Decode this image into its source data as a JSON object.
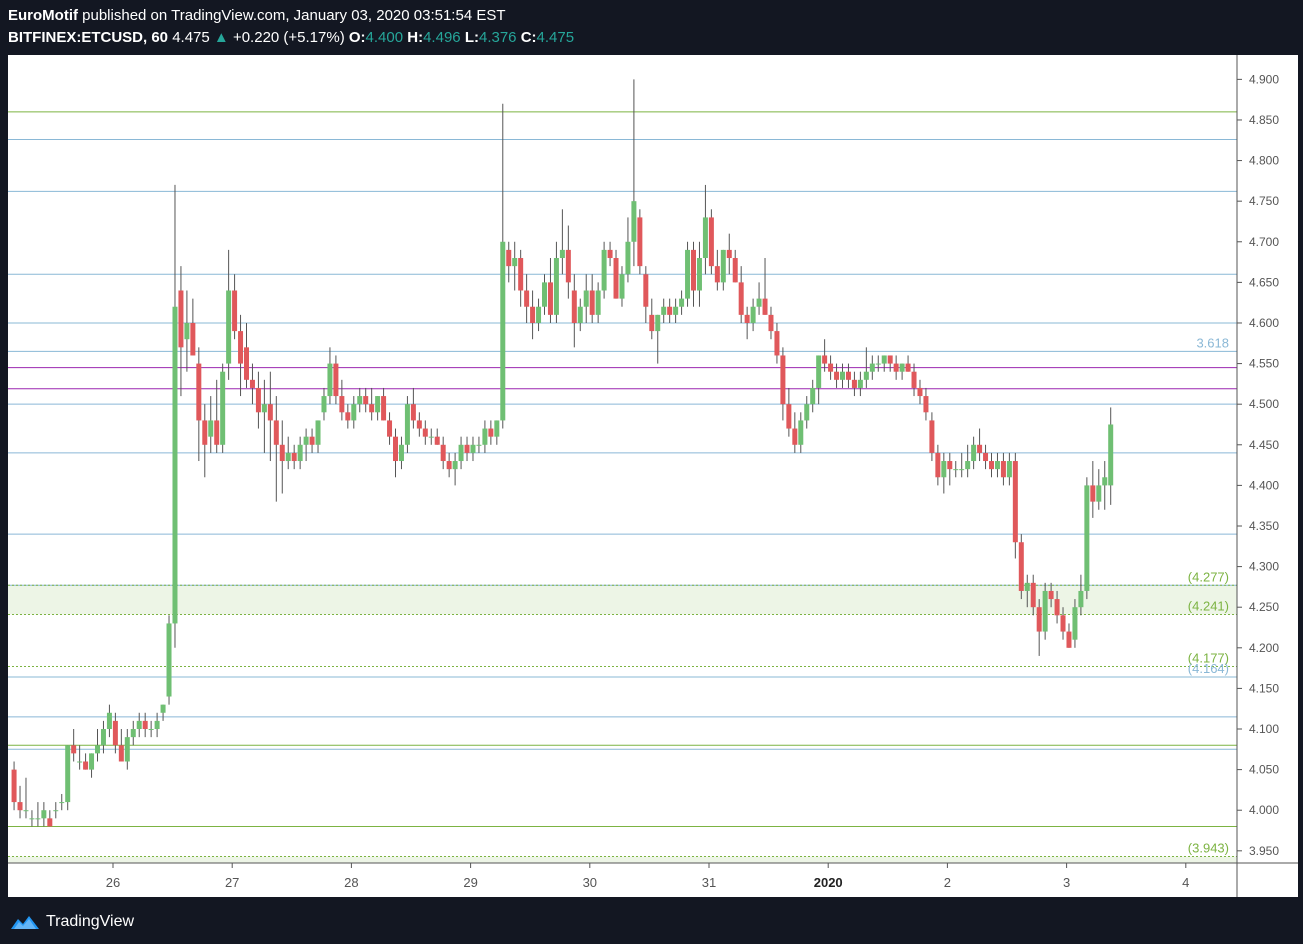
{
  "header": {
    "author": "EuroMotif",
    "published_text": "published on TradingView.com, January 03, 2020 03:51:54 EST",
    "symbol": "BITFINEX:ETCUSD, 60",
    "last": "4.475",
    "change_arrow": "▲",
    "change": "+0.220 (+5.17%)",
    "o_label": "O:",
    "o_value": "4.400",
    "h_label": "H:",
    "h_value": "4.496",
    "l_label": "L:",
    "l_value": "4.376",
    "c_label": "C:",
    "c_value": "4.475"
  },
  "footer": {
    "brand": "TradingView"
  },
  "colors": {
    "up": "#26a69a",
    "candle_up": "#6fbf73",
    "candle_down": "#e0585b",
    "fib_blue": "#8ab8d6",
    "fib_green": "#7cb342",
    "purple": "#9c27b0",
    "axis_text": "#555555"
  },
  "chart_data": {
    "type": "candlestick",
    "ylim": [
      3.935,
      4.93
    ],
    "y_ticks": [
      "4.900",
      "4.850",
      "4.800",
      "4.750",
      "4.700",
      "4.650",
      "4.600",
      "4.550",
      "4.500",
      "4.450",
      "4.400",
      "4.350",
      "4.300",
      "4.250",
      "4.200",
      "4.150",
      "4.100",
      "4.050",
      "4.000",
      "3.950"
    ],
    "x_ticks": [
      {
        "label": "26",
        "day": 26
      },
      {
        "label": "27",
        "day": 27
      },
      {
        "label": "28",
        "day": 28
      },
      {
        "label": "29",
        "day": 29
      },
      {
        "label": "30",
        "day": 30
      },
      {
        "label": "31",
        "day": 31
      },
      {
        "label": "2020",
        "day": 32,
        "bold": true
      },
      {
        "label": "2",
        "day": 33
      },
      {
        "label": "3",
        "day": 34
      },
      {
        "label": "4",
        "day": 35
      }
    ],
    "horizontal_levels": [
      {
        "price": 4.86,
        "color": "green"
      },
      {
        "price": 4.826,
        "color": "blue"
      },
      {
        "price": 4.762,
        "color": "blue"
      },
      {
        "price": 4.66,
        "color": "blue"
      },
      {
        "price": 4.6,
        "color": "blue"
      },
      {
        "price": 4.565,
        "color": "blue",
        "label": "3.618"
      },
      {
        "price": 4.545,
        "color": "purple"
      },
      {
        "price": 4.519,
        "color": "purple"
      },
      {
        "price": 4.5,
        "color": "blue"
      },
      {
        "price": 4.44,
        "color": "blue"
      },
      {
        "price": 4.34,
        "color": "blue"
      },
      {
        "price": 4.277,
        "color": "blue"
      },
      {
        "price": 4.277,
        "color": "green",
        "label": "(4.277)"
      },
      {
        "price": 4.241,
        "color": "green",
        "label": "(4.241)"
      },
      {
        "price": 4.177,
        "color": "green",
        "label": "(4.177)"
      },
      {
        "price": 4.164,
        "color": "blue",
        "label": "(4.164)"
      },
      {
        "price": 4.115,
        "color": "blue"
      },
      {
        "price": 4.08,
        "color": "green"
      },
      {
        "price": 4.075,
        "color": "blue"
      },
      {
        "price": 3.98,
        "color": "green"
      },
      {
        "price": 3.943,
        "color": "green",
        "label": "(3.943)"
      }
    ],
    "zones": [
      {
        "from": 4.241,
        "to": 4.277
      },
      {
        "from": 3.935,
        "to": 3.943
      }
    ],
    "candles": [
      [
        25.17,
        4.05,
        4.06,
        4.0,
        4.01
      ],
      [
        25.22,
        4.01,
        4.03,
        3.99,
        4.0
      ],
      [
        25.27,
        4.0,
        4.04,
        3.99,
        4.0
      ],
      [
        25.32,
        3.99,
        4.0,
        3.98,
        3.99
      ],
      [
        25.37,
        3.99,
        4.01,
        3.98,
        3.99
      ],
      [
        25.42,
        3.99,
        4.01,
        3.98,
        4.0
      ],
      [
        25.47,
        3.99,
        4.0,
        3.98,
        3.98
      ],
      [
        25.52,
        4.0,
        4.01,
        3.99,
        4.0
      ],
      [
        25.57,
        4.01,
        4.02,
        4.0,
        4.01
      ],
      [
        25.62,
        4.01,
        4.08,
        4.0,
        4.08
      ],
      [
        25.67,
        4.08,
        4.1,
        4.06,
        4.07
      ],
      [
        25.72,
        4.06,
        4.08,
        4.05,
        4.06
      ],
      [
        25.77,
        4.06,
        4.07,
        4.05,
        4.05
      ],
      [
        25.82,
        4.05,
        4.07,
        4.04,
        4.07
      ],
      [
        25.87,
        4.07,
        4.1,
        4.06,
        4.08
      ],
      [
        25.92,
        4.08,
        4.11,
        4.07,
        4.1
      ],
      [
        25.97,
        4.1,
        4.13,
        4.09,
        4.12
      ],
      [
        26.02,
        4.11,
        4.12,
        4.07,
        4.08
      ],
      [
        26.07,
        4.08,
        4.1,
        4.06,
        4.06
      ],
      [
        26.12,
        4.06,
        4.1,
        4.05,
        4.09
      ],
      [
        26.17,
        4.09,
        4.11,
        4.08,
        4.1
      ],
      [
        26.22,
        4.1,
        4.12,
        4.09,
        4.11
      ],
      [
        26.27,
        4.11,
        4.12,
        4.09,
        4.1
      ],
      [
        26.32,
        4.1,
        4.11,
        4.09,
        4.1
      ],
      [
        26.37,
        4.1,
        4.12,
        4.09,
        4.11
      ],
      [
        26.42,
        4.12,
        4.13,
        4.11,
        4.13
      ],
      [
        26.47,
        4.14,
        4.24,
        4.13,
        4.23
      ],
      [
        26.52,
        4.23,
        4.77,
        4.2,
        4.62
      ],
      [
        26.57,
        4.64,
        4.67,
        4.51,
        4.57
      ],
      [
        26.62,
        4.58,
        4.64,
        4.54,
        4.6
      ],
      [
        26.67,
        4.6,
        4.63,
        4.56,
        4.56
      ],
      [
        26.72,
        4.55,
        4.57,
        4.43,
        4.48
      ],
      [
        26.77,
        4.48,
        4.5,
        4.41,
        4.45
      ],
      [
        26.82,
        4.46,
        4.51,
        4.44,
        4.48
      ],
      [
        26.87,
        4.48,
        4.53,
        4.44,
        4.45
      ],
      [
        26.92,
        4.45,
        4.55,
        4.44,
        4.54
      ],
      [
        26.97,
        4.55,
        4.69,
        4.53,
        4.64
      ],
      [
        27.02,
        4.64,
        4.66,
        4.58,
        4.59
      ],
      [
        27.07,
        4.59,
        4.61,
        4.51,
        4.55
      ],
      [
        27.12,
        4.57,
        4.6,
        4.52,
        4.53
      ],
      [
        27.17,
        4.53,
        4.55,
        4.5,
        4.52
      ],
      [
        27.22,
        4.52,
        4.54,
        4.47,
        4.49
      ],
      [
        27.27,
        4.49,
        4.53,
        4.44,
        4.5
      ],
      [
        27.32,
        4.5,
        4.54,
        4.43,
        4.48
      ],
      [
        27.37,
        4.48,
        4.51,
        4.38,
        4.45
      ],
      [
        27.42,
        4.45,
        4.48,
        4.39,
        4.43
      ],
      [
        27.47,
        4.43,
        4.46,
        4.42,
        4.44
      ],
      [
        27.52,
        4.44,
        4.45,
        4.42,
        4.43
      ],
      [
        27.57,
        4.43,
        4.46,
        4.42,
        4.45
      ],
      [
        27.62,
        4.45,
        4.47,
        4.43,
        4.46
      ],
      [
        27.67,
        4.46,
        4.47,
        4.44,
        4.45
      ],
      [
        27.72,
        4.45,
        4.48,
        4.44,
        4.48
      ],
      [
        27.77,
        4.49,
        4.52,
        4.48,
        4.51
      ],
      [
        27.82,
        4.51,
        4.57,
        4.5,
        4.55
      ],
      [
        27.87,
        4.55,
        4.56,
        4.5,
        4.51
      ],
      [
        27.92,
        4.51,
        4.53,
        4.48,
        4.49
      ],
      [
        27.97,
        4.49,
        4.5,
        4.47,
        4.48
      ],
      [
        28.02,
        4.48,
        4.51,
        4.47,
        4.5
      ],
      [
        28.07,
        4.5,
        4.52,
        4.49,
        4.51
      ],
      [
        28.12,
        4.51,
        4.52,
        4.49,
        4.5
      ],
      [
        28.17,
        4.5,
        4.52,
        4.48,
        4.49
      ],
      [
        28.22,
        4.49,
        4.51,
        4.48,
        4.51
      ],
      [
        28.27,
        4.51,
        4.52,
        4.48,
        4.48
      ],
      [
        28.32,
        4.48,
        4.49,
        4.45,
        4.46
      ],
      [
        28.37,
        4.46,
        4.47,
        4.41,
        4.43
      ],
      [
        28.42,
        4.43,
        4.46,
        4.42,
        4.45
      ],
      [
        28.47,
        4.45,
        4.51,
        4.44,
        4.5
      ],
      [
        28.52,
        4.5,
        4.52,
        4.47,
        4.48
      ],
      [
        28.57,
        4.48,
        4.49,
        4.46,
        4.47
      ],
      [
        28.62,
        4.47,
        4.48,
        4.45,
        4.46
      ],
      [
        28.67,
        4.46,
        4.47,
        4.45,
        4.46
      ],
      [
        28.72,
        4.46,
        4.47,
        4.45,
        4.45
      ],
      [
        28.77,
        4.45,
        4.46,
        4.42,
        4.43
      ],
      [
        28.82,
        4.43,
        4.44,
        4.41,
        4.42
      ],
      [
        28.87,
        4.42,
        4.44,
        4.4,
        4.43
      ],
      [
        28.92,
        4.43,
        4.46,
        4.42,
        4.45
      ],
      [
        28.97,
        4.45,
        4.46,
        4.43,
        4.44
      ],
      [
        29.02,
        4.44,
        4.46,
        4.43,
        4.45
      ],
      [
        29.07,
        4.45,
        4.46,
        4.44,
        4.45
      ],
      [
        29.12,
        4.45,
        4.48,
        4.44,
        4.47
      ],
      [
        29.17,
        4.47,
        4.48,
        4.45,
        4.46
      ],
      [
        29.22,
        4.46,
        4.48,
        4.45,
        4.48
      ],
      [
        29.27,
        4.48,
        4.87,
        4.47,
        4.7
      ],
      [
        29.32,
        4.69,
        4.7,
        4.65,
        4.67
      ],
      [
        29.37,
        4.67,
        4.7,
        4.64,
        4.68
      ],
      [
        29.42,
        4.68,
        4.69,
        4.62,
        4.64
      ],
      [
        29.47,
        4.64,
        4.66,
        4.6,
        4.62
      ],
      [
        29.52,
        4.62,
        4.64,
        4.58,
        4.6
      ],
      [
        29.57,
        4.6,
        4.63,
        4.59,
        4.62
      ],
      [
        29.62,
        4.62,
        4.66,
        4.61,
        4.65
      ],
      [
        29.67,
        4.65,
        4.68,
        4.6,
        4.61
      ],
      [
        29.72,
        4.61,
        4.7,
        4.6,
        4.68
      ],
      [
        29.77,
        4.68,
        4.74,
        4.66,
        4.69
      ],
      [
        29.82,
        4.69,
        4.72,
        4.63,
        4.65
      ],
      [
        29.87,
        4.64,
        4.66,
        4.57,
        4.6
      ],
      [
        29.92,
        4.6,
        4.63,
        4.59,
        4.62
      ],
      [
        29.97,
        4.62,
        4.66,
        4.6,
        4.64
      ],
      [
        30.02,
        4.64,
        4.66,
        4.6,
        4.61
      ],
      [
        30.07,
        4.61,
        4.65,
        4.6,
        4.64
      ],
      [
        30.12,
        4.64,
        4.7,
        4.63,
        4.69
      ],
      [
        30.17,
        4.69,
        4.7,
        4.67,
        4.68
      ],
      [
        30.22,
        4.68,
        4.69,
        4.63,
        4.63
      ],
      [
        30.27,
        4.63,
        4.67,
        4.62,
        4.66
      ],
      [
        30.32,
        4.66,
        4.73,
        4.65,
        4.7
      ],
      [
        30.37,
        4.7,
        4.9,
        4.67,
        4.75
      ],
      [
        30.42,
        4.73,
        4.74,
        4.66,
        4.67
      ],
      [
        30.47,
        4.66,
        4.67,
        4.6,
        4.62
      ],
      [
        30.52,
        4.61,
        4.63,
        4.58,
        4.59
      ],
      [
        30.57,
        4.59,
        4.61,
        4.55,
        4.61
      ],
      [
        30.62,
        4.61,
        4.63,
        4.6,
        4.62
      ],
      [
        30.67,
        4.62,
        4.63,
        4.6,
        4.61
      ],
      [
        30.72,
        4.61,
        4.63,
        4.6,
        4.62
      ],
      [
        30.77,
        4.62,
        4.64,
        4.61,
        4.63
      ],
      [
        30.82,
        4.63,
        4.7,
        4.62,
        4.69
      ],
      [
        30.87,
        4.69,
        4.7,
        4.62,
        4.64
      ],
      [
        30.92,
        4.64,
        4.7,
        4.62,
        4.68
      ],
      [
        30.97,
        4.68,
        4.77,
        4.66,
        4.73
      ],
      [
        31.02,
        4.73,
        4.74,
        4.66,
        4.67
      ],
      [
        31.07,
        4.67,
        4.69,
        4.64,
        4.65
      ],
      [
        31.12,
        4.65,
        4.69,
        4.64,
        4.69
      ],
      [
        31.17,
        4.69,
        4.71,
        4.66,
        4.68
      ],
      [
        31.22,
        4.68,
        4.69,
        4.65,
        4.65
      ],
      [
        31.27,
        4.65,
        4.67,
        4.6,
        4.61
      ],
      [
        31.32,
        4.61,
        4.62,
        4.58,
        4.6
      ],
      [
        31.37,
        4.6,
        4.63,
        4.59,
        4.62
      ],
      [
        31.42,
        4.62,
        4.65,
        4.61,
        4.63
      ],
      [
        31.47,
        4.63,
        4.68,
        4.61,
        4.61
      ],
      [
        31.52,
        4.61,
        4.62,
        4.58,
        4.59
      ],
      [
        31.57,
        4.59,
        4.6,
        4.55,
        4.56
      ],
      [
        31.62,
        4.56,
        4.57,
        4.48,
        4.5
      ],
      [
        31.67,
        4.5,
        4.52,
        4.46,
        4.47
      ],
      [
        31.72,
        4.47,
        4.49,
        4.44,
        4.45
      ],
      [
        31.77,
        4.45,
        4.49,
        4.44,
        4.48
      ],
      [
        31.82,
        4.48,
        4.51,
        4.47,
        4.5
      ],
      [
        31.87,
        4.5,
        4.53,
        4.49,
        4.52
      ],
      [
        31.92,
        4.52,
        4.56,
        4.5,
        4.56
      ],
      [
        31.97,
        4.56,
        4.58,
        4.54,
        4.55
      ],
      [
        32.02,
        4.55,
        4.56,
        4.53,
        4.54
      ],
      [
        32.07,
        4.54,
        4.55,
        4.52,
        4.53
      ],
      [
        32.12,
        4.53,
        4.55,
        4.52,
        4.54
      ],
      [
        32.17,
        4.54,
        4.55,
        4.52,
        4.53
      ],
      [
        32.22,
        4.53,
        4.54,
        4.51,
        4.52
      ],
      [
        32.27,
        4.52,
        4.54,
        4.51,
        4.53
      ],
      [
        32.32,
        4.53,
        4.57,
        4.52,
        4.54
      ],
      [
        32.37,
        4.54,
        4.56,
        4.53,
        4.55
      ],
      [
        32.42,
        4.55,
        4.56,
        4.54,
        4.55
      ],
      [
        32.47,
        4.55,
        4.56,
        4.54,
        4.56
      ],
      [
        32.52,
        4.56,
        4.56,
        4.54,
        4.55
      ],
      [
        32.57,
        4.55,
        4.56,
        4.53,
        4.54
      ],
      [
        32.62,
        4.54,
        4.55,
        4.53,
        4.55
      ],
      [
        32.67,
        4.55,
        4.56,
        4.54,
        4.54
      ],
      [
        32.72,
        4.54,
        4.55,
        4.51,
        4.52
      ],
      [
        32.77,
        4.52,
        4.53,
        4.5,
        4.51
      ],
      [
        32.82,
        4.51,
        4.52,
        4.48,
        4.49
      ],
      [
        32.87,
        4.48,
        4.49,
        4.43,
        4.44
      ],
      [
        32.92,
        4.44,
        4.45,
        4.4,
        4.41
      ],
      [
        32.97,
        4.41,
        4.44,
        4.39,
        4.43
      ],
      [
        33.02,
        4.43,
        4.44,
        4.4,
        4.42
      ],
      [
        33.07,
        4.42,
        4.43,
        4.41,
        4.42
      ],
      [
        33.12,
        4.42,
        4.44,
        4.41,
        4.42
      ],
      [
        33.17,
        4.42,
        4.45,
        4.41,
        4.43
      ],
      [
        33.22,
        4.43,
        4.46,
        4.42,
        4.45
      ],
      [
        33.27,
        4.45,
        4.47,
        4.43,
        4.44
      ],
      [
        33.32,
        4.44,
        4.45,
        4.42,
        4.43
      ],
      [
        33.37,
        4.43,
        4.44,
        4.41,
        4.42
      ],
      [
        33.42,
        4.42,
        4.44,
        4.41,
        4.43
      ],
      [
        33.47,
        4.43,
        4.44,
        4.4,
        4.41
      ],
      [
        33.52,
        4.41,
        4.44,
        4.4,
        4.43
      ],
      [
        33.57,
        4.43,
        4.44,
        4.31,
        4.33
      ],
      [
        33.62,
        4.33,
        4.34,
        4.26,
        4.27
      ],
      [
        33.67,
        4.27,
        4.29,
        4.25,
        4.28
      ],
      [
        33.72,
        4.28,
        4.29,
        4.24,
        4.25
      ],
      [
        33.77,
        4.25,
        4.26,
        4.19,
        4.22
      ],
      [
        33.82,
        4.22,
        4.28,
        4.21,
        4.27
      ],
      [
        33.87,
        4.27,
        4.28,
        4.25,
        4.26
      ],
      [
        33.92,
        4.26,
        4.27,
        4.23,
        4.24
      ],
      [
        33.97,
        4.24,
        4.25,
        4.21,
        4.22
      ],
      [
        34.02,
        4.22,
        4.23,
        4.2,
        4.2
      ],
      [
        34.07,
        4.21,
        4.26,
        4.2,
        4.25
      ],
      [
        34.12,
        4.25,
        4.29,
        4.24,
        4.27
      ],
      [
        34.17,
        4.27,
        4.41,
        4.26,
        4.4
      ],
      [
        34.22,
        4.4,
        4.43,
        4.36,
        4.38
      ],
      [
        34.27,
        4.38,
        4.42,
        4.37,
        4.4
      ],
      [
        34.32,
        4.4,
        4.43,
        4.37,
        4.41
      ],
      [
        34.37,
        4.4,
        4.496,
        4.376,
        4.475
      ]
    ]
  }
}
